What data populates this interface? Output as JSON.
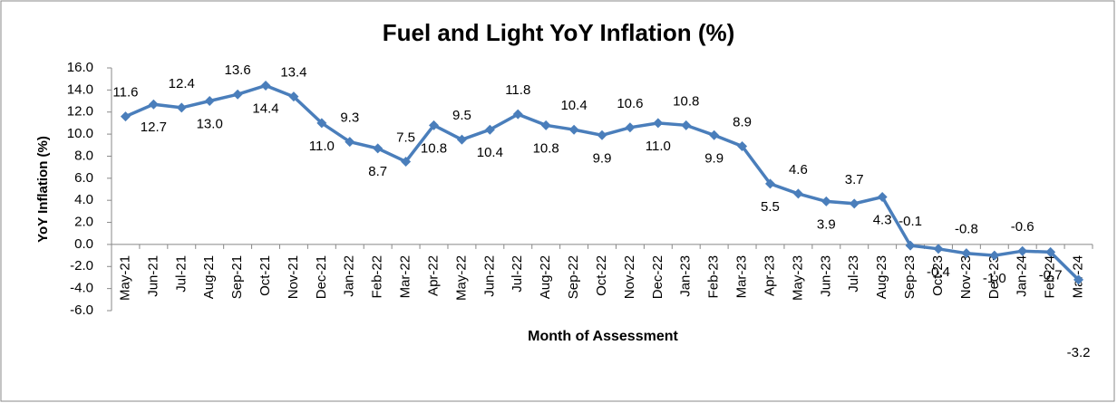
{
  "chart_data": {
    "type": "line",
    "title": "Fuel and Light YoY Inflation (%)",
    "x_label": "Month of Assessment",
    "y_label": "YoY Inflation (%)",
    "categories": [
      "May-21",
      "Jun-21",
      "Jul-21",
      "Aug-21",
      "Sep-21",
      "Oct-21",
      "Nov-21",
      "Dec-21",
      "Jan-22",
      "Feb-22",
      "Mar-22",
      "Apr-22",
      "May-22",
      "Jun-22",
      "Jul-22",
      "Aug-22",
      "Sep-22",
      "Oct-22",
      "Nov-22",
      "Dec-22",
      "Jan-23",
      "Feb-23",
      "Mar-23",
      "Apr-23",
      "May-23",
      "Jun-23",
      "Jul-23",
      "Aug-23",
      "Sep-23",
      "Oct-23",
      "Nov-23",
      "Dec-23",
      "Jan-24",
      "Feb-24",
      "Mar-24"
    ],
    "values": [
      11.6,
      12.7,
      12.4,
      13.0,
      13.6,
      14.4,
      13.4,
      11.0,
      9.3,
      8.7,
      7.5,
      10.8,
      9.5,
      10.4,
      11.8,
      10.8,
      10.4,
      9.9,
      10.6,
      11.0,
      10.8,
      9.9,
      8.9,
      5.5,
      4.6,
      3.9,
      3.7,
      4.3,
      -0.1,
      -0.4,
      -0.8,
      -1.0,
      -0.6,
      -0.7,
      -3.2
    ],
    "value_labels": [
      "11.6",
      "12.7",
      "12.4",
      "13.0",
      "13.6",
      "14.4",
      "13.4",
      "11.0",
      "9.3",
      "8.7",
      "7.5",
      "10.8",
      "9.5",
      "10.4",
      "11.8",
      "10.8",
      "10.4",
      "9.9",
      "10.6",
      "11.0",
      "10.8",
      "9.9",
      "8.9",
      "5.5",
      "4.6",
      "3.9",
      "3.7",
      "4.3",
      "-0.1",
      "-0.4",
      "-0.8",
      "-1.0",
      "-0.6",
      "-0.7",
      "-3.2"
    ],
    "color": "#4a7ebb",
    "ylim": [
      -6,
      16
    ],
    "yticks": [
      {
        "value": -6,
        "label": "-6.0"
      },
      {
        "value": -4,
        "label": "-4.0"
      },
      {
        "value": -2,
        "label": "-2.0"
      },
      {
        "value": 0,
        "label": "0.0"
      },
      {
        "value": 2,
        "label": "2.0"
      },
      {
        "value": 4,
        "label": "4.0"
      },
      {
        "value": 6,
        "label": "6.0"
      },
      {
        "value": 8,
        "label": "8.0"
      },
      {
        "value": 10,
        "label": "10.0"
      },
      {
        "value": 12,
        "label": "12.0"
      },
      {
        "value": 14,
        "label": "14.0"
      },
      {
        "value": 16,
        "label": "16.0"
      }
    ]
  }
}
